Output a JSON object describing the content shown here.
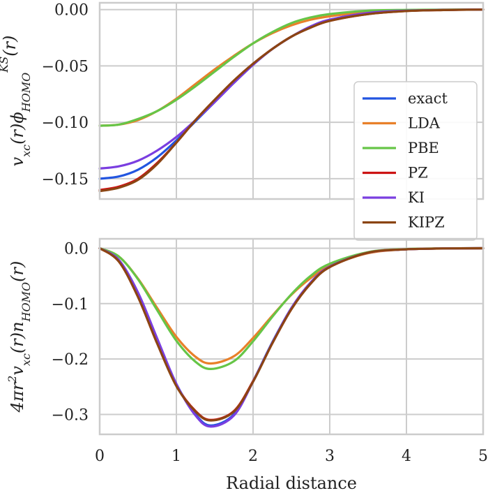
{
  "chart_data": [
    {
      "type": "line",
      "ylabel_html": "v<tspan baseline-shift='sub' font-size='16'>xc</tspan>(r)ϕ<tspan baseline-shift='sub' font-size='16'>HOMO</tspan><tspan dy='-22' font-size='16'>KS</tspan><tspan dy='11'>(r)</tspan>",
      "xlim": [
        0,
        5
      ],
      "ylim": [
        -0.168,
        0.006
      ],
      "grid": true,
      "yticks": [
        0.0,
        -0.05,
        -0.1,
        -0.15
      ],
      "ytick_labels": [
        "0.00",
        "−0.05",
        "−0.10",
        "−0.15"
      ],
      "legend": "right",
      "series": [
        {
          "name": "exact",
          "color": "#2255e0",
          "x": [
            0,
            0.25,
            0.5,
            0.75,
            1.0,
            1.25,
            1.5,
            1.75,
            2.0,
            2.25,
            2.5,
            2.75,
            3.0,
            3.5,
            4.0,
            4.5,
            5.0
          ],
          "values": [
            -0.15,
            -0.148,
            -0.142,
            -0.131,
            -0.116,
            -0.099,
            -0.082,
            -0.065,
            -0.049,
            -0.035,
            -0.024,
            -0.015,
            -0.009,
            -0.003,
            -0.001,
            -0.0003,
            0.0
          ]
        },
        {
          "name": "LDA",
          "color": "#e8802a",
          "x": [
            0,
            0.25,
            0.5,
            0.75,
            1.0,
            1.25,
            1.5,
            1.75,
            2.0,
            2.25,
            2.5,
            2.75,
            3.0,
            3.5,
            4.0,
            4.5,
            5.0
          ],
          "values": [
            -0.103,
            -0.102,
            -0.098,
            -0.09,
            -0.079,
            -0.066,
            -0.053,
            -0.041,
            -0.03,
            -0.021,
            -0.014,
            -0.009,
            -0.006,
            -0.002,
            -0.0006,
            -0.0002,
            0.0
          ]
        },
        {
          "name": "PBE",
          "color": "#66c547",
          "x": [
            0,
            0.25,
            0.5,
            0.75,
            1.0,
            1.25,
            1.5,
            1.75,
            2.0,
            2.25,
            2.5,
            2.75,
            3.0,
            3.5,
            4.0,
            4.5,
            5.0
          ],
          "values": [
            -0.103,
            -0.102,
            -0.097,
            -0.09,
            -0.08,
            -0.068,
            -0.055,
            -0.042,
            -0.03,
            -0.02,
            -0.012,
            -0.007,
            -0.004,
            -0.001,
            -0.0003,
            -0.0001,
            0.0
          ]
        },
        {
          "name": "PZ",
          "color": "#cc1414",
          "x": [
            0,
            0.25,
            0.5,
            0.75,
            1.0,
            1.25,
            1.5,
            1.75,
            2.0,
            2.25,
            2.5,
            2.75,
            3.0,
            3.5,
            4.0,
            4.5,
            5.0
          ],
          "values": [
            -0.16,
            -0.157,
            -0.15,
            -0.136,
            -0.118,
            -0.098,
            -0.08,
            -0.063,
            -0.048,
            -0.035,
            -0.024,
            -0.016,
            -0.01,
            -0.004,
            -0.0013,
            -0.0004,
            0.0
          ]
        },
        {
          "name": "KI",
          "color": "#7a3ee0",
          "x": [
            0,
            0.25,
            0.5,
            0.75,
            1.0,
            1.25,
            1.5,
            1.75,
            2.0,
            2.25,
            2.5,
            2.75,
            3.0,
            3.5,
            4.0,
            4.5,
            5.0
          ],
          "values": [
            -0.141,
            -0.139,
            -0.134,
            -0.125,
            -0.113,
            -0.098,
            -0.082,
            -0.065,
            -0.049,
            -0.035,
            -0.024,
            -0.015,
            -0.009,
            -0.003,
            -0.001,
            -0.0003,
            0.0
          ]
        },
        {
          "name": "KIPZ",
          "color": "#8b4513",
          "x": [
            0,
            0.25,
            0.5,
            0.75,
            1.0,
            1.25,
            1.5,
            1.75,
            2.0,
            2.25,
            2.5,
            2.75,
            3.0,
            3.5,
            4.0,
            4.5,
            5.0
          ],
          "values": [
            -0.161,
            -0.158,
            -0.151,
            -0.137,
            -0.118,
            -0.098,
            -0.08,
            -0.063,
            -0.048,
            -0.035,
            -0.024,
            -0.016,
            -0.01,
            -0.004,
            -0.0013,
            -0.0004,
            0.0
          ]
        }
      ]
    },
    {
      "type": "line",
      "ylabel_html": "4πr<tspan dy='-10' font-size='16'>2</tspan><tspan dy='10'>v</tspan><tspan baseline-shift='sub' font-size='16'>xc</tspan>(r)n<tspan baseline-shift='sub' font-size='16'>HOMO</tspan>(r)",
      "xlabel": "Radial distance",
      "xlim": [
        0,
        5
      ],
      "ylim": [
        -0.336,
        0.017
      ],
      "grid": true,
      "xticks": [
        0,
        1,
        2,
        3,
        4,
        5
      ],
      "xtick_labels": [
        "0",
        "1",
        "2",
        "3",
        "4",
        "5"
      ],
      "yticks": [
        0.0,
        -0.1,
        -0.2,
        -0.3
      ],
      "ytick_labels": [
        "0.0",
        "−0.1",
        "−0.2",
        "−0.3"
      ],
      "series": [
        {
          "name": "exact",
          "color": "#2255e0",
          "x": [
            0,
            0.25,
            0.5,
            0.75,
            1.0,
            1.25,
            1.45,
            1.75,
            2.0,
            2.25,
            2.5,
            2.75,
            3.0,
            3.5,
            4.0,
            4.5,
            5.0
          ],
          "values": [
            0.0,
            -0.022,
            -0.082,
            -0.165,
            -0.245,
            -0.3,
            -0.32,
            -0.3,
            -0.24,
            -0.17,
            -0.108,
            -0.062,
            -0.033,
            -0.008,
            -0.002,
            -0.0004,
            0.0
          ]
        },
        {
          "name": "LDA",
          "color": "#e8802a",
          "x": [
            0,
            0.25,
            0.5,
            0.75,
            1.0,
            1.25,
            1.45,
            1.75,
            2.0,
            2.25,
            2.5,
            2.75,
            3.0,
            3.5,
            4.0,
            4.5,
            5.0
          ],
          "values": [
            0.0,
            -0.015,
            -0.055,
            -0.108,
            -0.16,
            -0.196,
            -0.208,
            -0.195,
            -0.162,
            -0.122,
            -0.084,
            -0.054,
            -0.032,
            -0.009,
            -0.002,
            -0.0005,
            0.0
          ]
        },
        {
          "name": "PBE",
          "color": "#66c547",
          "x": [
            0,
            0.25,
            0.5,
            0.75,
            1.0,
            1.25,
            1.45,
            1.75,
            2.0,
            2.25,
            2.5,
            2.75,
            3.0,
            3.5,
            4.0,
            4.5,
            5.0
          ],
          "values": [
            0.0,
            -0.015,
            -0.056,
            -0.112,
            -0.167,
            -0.205,
            -0.218,
            -0.204,
            -0.168,
            -0.124,
            -0.083,
            -0.05,
            -0.028,
            -0.007,
            -0.0015,
            -0.0003,
            0.0
          ]
        },
        {
          "name": "PZ",
          "color": "#cc1414",
          "x": [
            0,
            0.25,
            0.5,
            0.75,
            1.0,
            1.25,
            1.45,
            1.75,
            2.0,
            2.25,
            2.5,
            2.75,
            3.0,
            3.5,
            4.0,
            4.5,
            5.0
          ],
          "values": [
            0.0,
            -0.024,
            -0.088,
            -0.172,
            -0.248,
            -0.294,
            -0.31,
            -0.294,
            -0.24,
            -0.172,
            -0.11,
            -0.064,
            -0.034,
            -0.008,
            -0.002,
            -0.0004,
            0.0
          ]
        },
        {
          "name": "KI",
          "color": "#7a3ee0",
          "x": [
            0,
            0.25,
            0.5,
            0.75,
            1.0,
            1.25,
            1.45,
            1.75,
            2.0,
            2.25,
            2.5,
            2.75,
            3.0,
            3.5,
            4.0,
            4.5,
            5.0
          ],
          "values": [
            0.0,
            -0.021,
            -0.08,
            -0.163,
            -0.245,
            -0.302,
            -0.322,
            -0.302,
            -0.241,
            -0.171,
            -0.108,
            -0.062,
            -0.033,
            -0.008,
            -0.002,
            -0.0004,
            0.0
          ]
        },
        {
          "name": "KIPZ",
          "color": "#8b4513",
          "x": [
            0,
            0.25,
            0.5,
            0.75,
            1.0,
            1.25,
            1.45,
            1.75,
            2.0,
            2.25,
            2.5,
            2.75,
            3.0,
            3.5,
            4.0,
            4.5,
            5.0
          ],
          "values": [
            0.0,
            -0.024,
            -0.088,
            -0.172,
            -0.249,
            -0.295,
            -0.311,
            -0.295,
            -0.241,
            -0.172,
            -0.11,
            -0.064,
            -0.034,
            -0.008,
            -0.002,
            -0.0004,
            0.0
          ]
        }
      ]
    }
  ]
}
